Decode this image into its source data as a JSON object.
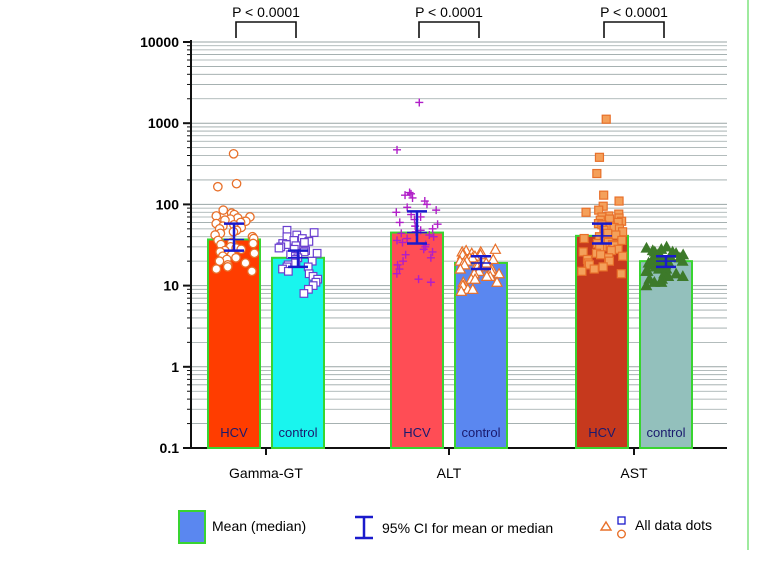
{
  "chart_data": {
    "type": "bar",
    "scale": "log10",
    "ylim": [
      0.1,
      10000
    ],
    "yticks": [
      {
        "value": 0.1,
        "label": "0.1"
      },
      {
        "value": 1,
        "label": "1"
      },
      {
        "value": 10,
        "label": "10"
      },
      {
        "value": 100,
        "label": "100"
      },
      {
        "value": 1000,
        "label": "1000"
      },
      {
        "value": 10000,
        "label": "10000"
      }
    ],
    "groups": [
      {
        "name": "Gamma-GT",
        "p_value": "P < 0.0001",
        "bars": [
          {
            "label": "HCV",
            "value": 37,
            "color": "#ff3d00",
            "label_color": "#1a1a6e",
            "ci": [
              27,
              58
            ],
            "marker": "circle",
            "marker_color": "#e8702a",
            "marker_fill": "#ffffff",
            "points": [
              420,
              180,
              165,
              85,
              78,
              75,
              72,
              70,
              68,
              66,
              64,
              62,
              60,
              58,
              56,
              54,
              52,
              50,
              48,
              46,
              44,
              42,
              40,
              38,
              36,
              34,
              33,
              32,
              30,
              29,
              28,
              27,
              26,
              25,
              24,
              23,
              22,
              21,
              20,
              19,
              18,
              17,
              16,
              15
            ]
          },
          {
            "label": "control",
            "value": 22,
            "color": "#19f5ee",
            "label_color": "#1a1a6e",
            "ci": [
              17,
              27
            ],
            "marker": "square",
            "marker_color": "#6a3fd0",
            "marker_fill": "#ffffff",
            "points": [
              48,
              45,
              42,
              40,
              38,
              36,
              35,
              34,
              33,
              32,
              31,
              30,
              29,
              28,
              27,
              26,
              25,
              24,
              23,
              22,
              21,
              20,
              20,
              19,
              18,
              17,
              17,
              16,
              15,
              14,
              13,
              12,
              11,
              10,
              9,
              8
            ]
          }
        ]
      },
      {
        "name": "ALT",
        "p_value": "P < 0.0001",
        "bars": [
          {
            "label": "HCV",
            "value": 45,
            "color": "#ff4d55",
            "label_color": "#1a1a6e",
            "ci": [
              33,
              82
            ],
            "marker": "plus",
            "marker_color": "#b01ec8",
            "marker_fill": "none",
            "points": [
              1800,
              470,
              140,
              135,
              130,
              120,
              110,
              100,
              92,
              85,
              80,
              75,
              70,
              65,
              60,
              57,
              54,
              50,
              48,
              46,
              44,
              42,
              40,
              38,
              36,
              34,
              32,
              30,
              28,
              26,
              24,
              22,
              20,
              18,
              16,
              14,
              12,
              11
            ]
          },
          {
            "label": "control",
            "value": 19,
            "color": "#5a87f0",
            "label_color": "#1a1a6e",
            "ci": [
              16,
              23
            ],
            "marker": "triangle",
            "marker_color": "#e8702a",
            "marker_fill": "#ffffff",
            "points": [
              28,
              27,
              26,
              26,
              25,
              24,
              24,
              23,
              22,
              22,
              21,
              21,
              20,
              20,
              19,
              19,
              18,
              18,
              17,
              17,
              16,
              16,
              15,
              15,
              14,
              14,
              13,
              13,
              12,
              12,
              11,
              11,
              10,
              10,
              9,
              9,
              8.5
            ]
          }
        ]
      },
      {
        "name": "AST",
        "p_value": "P < 0.0001",
        "bars": [
          {
            "label": "HCV",
            "value": 41,
            "color": "#c6391d",
            "label_color": "#1a1a6e",
            "ci": [
              33,
              58
            ],
            "marker": "square-filled",
            "marker_color": "#e8702a",
            "marker_fill": "#f4a05a",
            "points": [
              1120,
              380,
              240,
              130,
              110,
              95,
              85,
              80,
              76,
              72,
              70,
              68,
              66,
              64,
              62,
              60,
              58,
              56,
              54,
              52,
              50,
              48,
              46,
              44,
              42,
              40,
              38,
              36,
              35,
              34,
              33,
              32,
              31,
              30,
              29,
              28,
              27,
              26,
              25,
              24,
              23,
              22,
              21,
              20,
              19,
              18,
              17,
              16,
              15,
              14
            ]
          },
          {
            "label": "control",
            "value": 20,
            "color": "#93c0bc",
            "label_color": "#1a1a6e",
            "ci": [
              17,
              23
            ],
            "marker": "triangle-filled",
            "marker_color": "#3d7a2a",
            "marker_fill": "#3d7a2a",
            "points": [
              30,
              29,
              28,
              27,
              26,
              26,
              25,
              24,
              24,
              23,
              22,
              22,
              21,
              21,
              20,
              20,
              19,
              19,
              18,
              18,
              17,
              17,
              16,
              16,
              15,
              15,
              14,
              14,
              13,
              13,
              12,
              12,
              11,
              11,
              10
            ]
          }
        ]
      }
    ],
    "legend": {
      "placement": "bottom",
      "items": [
        {
          "label": "Mean (median)",
          "symbol": "bar",
          "color": "#5a87f0"
        },
        {
          "label": "95% CI for mean or median",
          "symbol": "ci",
          "color": "#1a1acc"
        },
        {
          "label": "All data dots",
          "symbol": "dots",
          "color": "#e8702a"
        }
      ]
    },
    "colors": {
      "bar_border": "#39d430",
      "ci": "#1a1acc",
      "grid": "#9aa6a6",
      "axis": "#111111",
      "bracket": "#111111",
      "frame_line": "#7fe37f"
    }
  }
}
